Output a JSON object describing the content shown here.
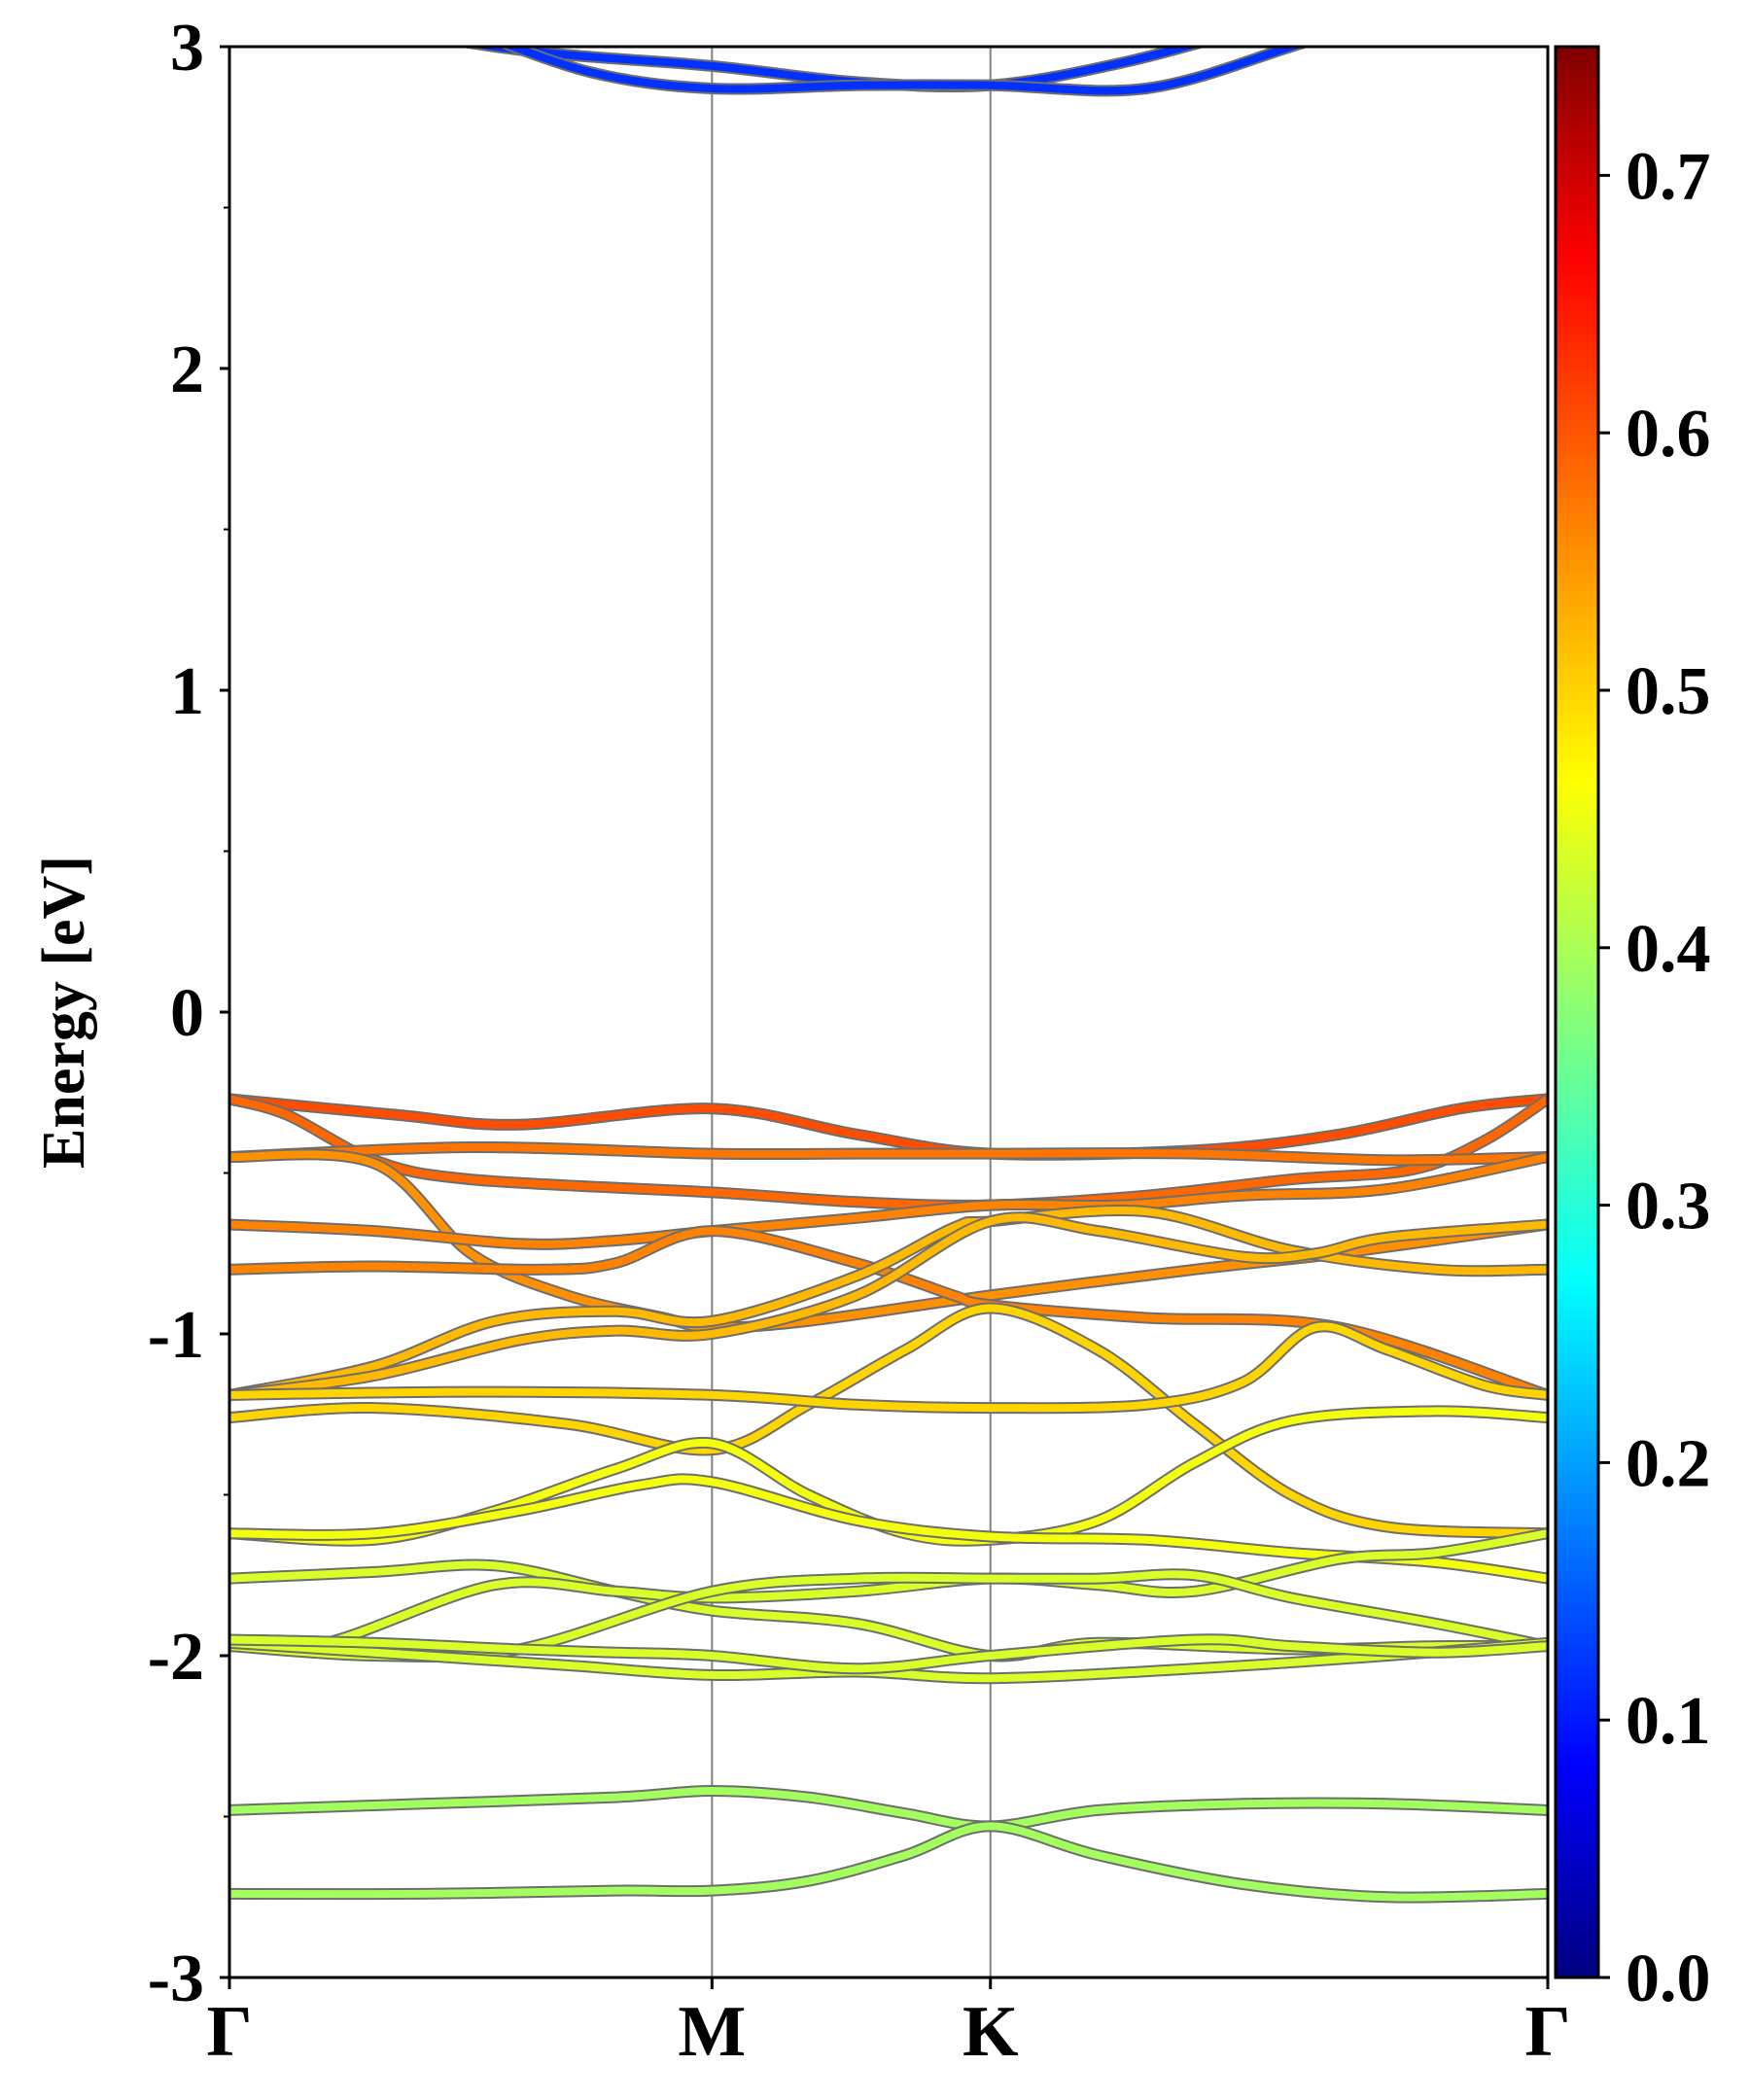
{
  "chart_data": {
    "type": "line",
    "title": "",
    "xlabel": "",
    "ylabel": "Energy [eV]",
    "ylim": [
      -3,
      3
    ],
    "y_ticks": [
      "-3",
      "-2",
      "-1",
      "0",
      "1",
      "2",
      "3"
    ],
    "x_ticks": [
      "Γ",
      "M",
      "K",
      "Γ"
    ],
    "x_tick_positions": [
      0,
      1.0,
      1.577,
      2.732
    ],
    "grid": "vertical lines at M and K",
    "colorbar": {
      "colormap": "jet",
      "range": [
        0.0,
        0.75
      ],
      "tick_labels": [
        "0.0",
        "0.1",
        "0.2",
        "0.3",
        "0.4",
        "0.5",
        "0.6",
        "0.7"
      ]
    },
    "series": [
      {
        "c": 0.13,
        "points": [
          [
            0,
            3.15
          ],
          [
            0.55,
            3.0
          ],
          [
            1.0,
            2.94
          ],
          [
            1.3,
            2.89
          ],
          [
            1.577,
            2.88
          ],
          [
            1.85,
            2.95
          ],
          [
            2.1,
            3.05
          ]
        ]
      },
      {
        "c": 0.13,
        "points": [
          [
            0.5,
            3.05
          ],
          [
            0.75,
            2.92
          ],
          [
            1.0,
            2.87
          ],
          [
            1.3,
            2.88
          ],
          [
            1.577,
            2.88
          ],
          [
            1.9,
            2.87
          ],
          [
            2.2,
            3.0
          ],
          [
            2.4,
            3.1
          ]
        ]
      },
      {
        "c": 0.6,
        "points": [
          [
            0,
            -0.27
          ],
          [
            0.35,
            -0.32
          ],
          [
            0.6,
            -0.35
          ],
          [
            1.0,
            -0.3
          ],
          [
            1.3,
            -0.38
          ],
          [
            1.577,
            -0.44
          ],
          [
            2.0,
            -0.43
          ],
          [
            2.3,
            -0.38
          ],
          [
            2.55,
            -0.3
          ],
          [
            2.732,
            -0.27
          ]
        ]
      },
      {
        "c": 0.58,
        "points": [
          [
            0,
            -0.27
          ],
          [
            0.12,
            -0.32
          ],
          [
            0.3,
            -0.46
          ],
          [
            0.5,
            -0.52
          ],
          [
            1.0,
            -0.56
          ],
          [
            1.3,
            -0.59
          ],
          [
            1.577,
            -0.6
          ],
          [
            1.9,
            -0.57
          ],
          [
            2.2,
            -0.52
          ],
          [
            2.45,
            -0.49
          ],
          [
            2.6,
            -0.4
          ],
          [
            2.732,
            -0.27
          ]
        ]
      },
      {
        "c": 0.57,
        "points": [
          [
            0,
            -0.45
          ],
          [
            0.5,
            -0.42
          ],
          [
            1.0,
            -0.44
          ],
          [
            1.3,
            -0.44
          ],
          [
            1.577,
            -0.44
          ],
          [
            2.0,
            -0.44
          ],
          [
            2.4,
            -0.46
          ],
          [
            2.732,
            -0.45
          ]
        ]
      },
      {
        "c": 0.55,
        "points": [
          [
            0,
            -0.45
          ],
          [
            0.3,
            -0.47
          ],
          [
            0.5,
            -0.75
          ],
          [
            0.7,
            -0.88
          ],
          [
            0.9,
            -0.95
          ],
          [
            1.0,
            -0.98
          ],
          [
            1.2,
            -0.96
          ],
          [
            1.577,
            -0.88
          ],
          [
            2.0,
            -0.8
          ],
          [
            2.3,
            -0.75
          ],
          [
            2.732,
            -0.66
          ]
        ]
      },
      {
        "c": 0.56,
        "points": [
          [
            0,
            -0.66
          ],
          [
            0.3,
            -0.68
          ],
          [
            0.6,
            -0.72
          ],
          [
            0.8,
            -0.71
          ],
          [
            1.0,
            -0.68
          ],
          [
            1.3,
            -0.64
          ],
          [
            1.577,
            -0.6
          ],
          [
            1.85,
            -0.6
          ],
          [
            2.1,
            -0.57
          ],
          [
            2.4,
            -0.55
          ],
          [
            2.732,
            -0.45
          ]
        ]
      },
      {
        "c": 0.56,
        "points": [
          [
            0,
            -0.8
          ],
          [
            0.3,
            -0.79
          ],
          [
            0.65,
            -0.8
          ],
          [
            0.8,
            -0.78
          ],
          [
            1.0,
            -0.68
          ],
          [
            1.3,
            -0.78
          ],
          [
            1.5,
            -0.88
          ],
          [
            1.577,
            -0.91
          ],
          [
            1.9,
            -0.95
          ],
          [
            2.3,
            -0.98
          ],
          [
            2.732,
            -1.19
          ]
        ]
      },
      {
        "c": 0.52,
        "points": [
          [
            0,
            -1.19
          ],
          [
            0.3,
            -1.1
          ],
          [
            0.55,
            -0.96
          ],
          [
            0.8,
            -0.93
          ],
          [
            1.0,
            -0.96
          ],
          [
            1.3,
            -0.82
          ],
          [
            1.5,
            -0.67
          ],
          [
            1.577,
            -0.65
          ],
          [
            1.9,
            -0.62
          ],
          [
            2.2,
            -0.74
          ],
          [
            2.5,
            -0.8
          ],
          [
            2.732,
            -0.8
          ]
        ]
      },
      {
        "c": 0.52,
        "points": [
          [
            0,
            -1.19
          ],
          [
            0.3,
            -1.13
          ],
          [
            0.6,
            -1.02
          ],
          [
            0.8,
            -0.99
          ],
          [
            1.0,
            -1.0
          ],
          [
            1.3,
            -0.88
          ],
          [
            1.577,
            -0.65
          ],
          [
            1.8,
            -0.68
          ],
          [
            2.1,
            -0.76
          ],
          [
            2.25,
            -0.75
          ],
          [
            2.4,
            -0.7
          ],
          [
            2.732,
            -0.66
          ]
        ]
      },
      {
        "c": 0.5,
        "points": [
          [
            0,
            -1.26
          ],
          [
            0.3,
            -1.23
          ],
          [
            0.7,
            -1.28
          ],
          [
            1.0,
            -1.36
          ],
          [
            1.2,
            -1.22
          ],
          [
            1.4,
            -1.05
          ],
          [
            1.577,
            -0.92
          ],
          [
            1.8,
            -1.05
          ],
          [
            2.0,
            -1.28
          ],
          [
            2.2,
            -1.5
          ],
          [
            2.4,
            -1.6
          ],
          [
            2.732,
            -1.62
          ]
        ]
      },
      {
        "c": 0.5,
        "points": [
          [
            0,
            -1.19
          ],
          [
            0.5,
            -1.18
          ],
          [
            1.0,
            -1.19
          ],
          [
            1.3,
            -1.22
          ],
          [
            1.577,
            -1.23
          ],
          [
            1.9,
            -1.22
          ],
          [
            2.1,
            -1.15
          ],
          [
            2.25,
            -0.98
          ],
          [
            2.4,
            -1.05
          ],
          [
            2.6,
            -1.16
          ],
          [
            2.732,
            -1.19
          ]
        ]
      },
      {
        "c": 0.46,
        "points": [
          [
            0,
            -1.62
          ],
          [
            0.3,
            -1.64
          ],
          [
            0.55,
            -1.55
          ],
          [
            0.8,
            -1.42
          ],
          [
            1.0,
            -1.34
          ],
          [
            1.2,
            -1.5
          ],
          [
            1.4,
            -1.62
          ],
          [
            1.577,
            -1.64
          ],
          [
            1.8,
            -1.58
          ],
          [
            2.0,
            -1.4
          ],
          [
            2.2,
            -1.27
          ],
          [
            2.5,
            -1.24
          ],
          [
            2.732,
            -1.26
          ]
        ]
      },
      {
        "c": 0.46,
        "points": [
          [
            0,
            -1.62
          ],
          [
            0.3,
            -1.62
          ],
          [
            0.6,
            -1.55
          ],
          [
            0.85,
            -1.47
          ],
          [
            1.0,
            -1.46
          ],
          [
            1.3,
            -1.58
          ],
          [
            1.577,
            -1.63
          ],
          [
            1.9,
            -1.64
          ],
          [
            2.2,
            -1.68
          ],
          [
            2.5,
            -1.71
          ],
          [
            2.732,
            -1.76
          ]
        ]
      },
      {
        "c": 0.44,
        "points": [
          [
            0,
            -1.76
          ],
          [
            0.3,
            -1.74
          ],
          [
            0.55,
            -1.72
          ],
          [
            0.8,
            -1.8
          ],
          [
            1.0,
            -1.86
          ],
          [
            1.3,
            -1.9
          ],
          [
            1.577,
            -2.0
          ],
          [
            1.8,
            -1.96
          ],
          [
            2.2,
            -1.98
          ],
          [
            2.5,
            -1.97
          ],
          [
            2.732,
            -1.97
          ]
        ]
      },
      {
        "c": 0.44,
        "points": [
          [
            0,
            -1.97
          ],
          [
            0.2,
            -1.96
          ],
          [
            0.55,
            -1.78
          ],
          [
            0.8,
            -1.8
          ],
          [
            1.0,
            -1.82
          ],
          [
            1.3,
            -1.8
          ],
          [
            1.577,
            -1.76
          ],
          [
            1.8,
            -1.78
          ],
          [
            2.0,
            -1.8
          ],
          [
            2.3,
            -1.7
          ],
          [
            2.5,
            -1.68
          ],
          [
            2.732,
            -1.62
          ]
        ]
      },
      {
        "c": 0.44,
        "points": [
          [
            0,
            -1.97
          ],
          [
            0.3,
            -2.0
          ],
          [
            0.6,
            -1.98
          ],
          [
            1.0,
            -1.8
          ],
          [
            1.3,
            -1.76
          ],
          [
            1.577,
            -1.76
          ],
          [
            1.8,
            -1.76
          ],
          [
            2.0,
            -1.75
          ],
          [
            2.2,
            -1.82
          ],
          [
            2.5,
            -1.9
          ],
          [
            2.732,
            -1.97
          ]
        ]
      },
      {
        "c": 0.44,
        "points": [
          [
            0,
            -1.96
          ],
          [
            0.3,
            -1.99
          ],
          [
            0.7,
            -2.03
          ],
          [
            1.0,
            -2.06
          ],
          [
            1.3,
            -2.05
          ],
          [
            1.577,
            -2.07
          ],
          [
            2.0,
            -2.04
          ],
          [
            2.4,
            -2.0
          ],
          [
            2.732,
            -1.96
          ]
        ]
      },
      {
        "c": 0.44,
        "points": [
          [
            0,
            -1.95
          ],
          [
            0.3,
            -1.96
          ],
          [
            0.6,
            -1.98
          ],
          [
            0.8,
            -1.99
          ],
          [
            1.0,
            -2.0
          ],
          [
            1.3,
            -2.04
          ],
          [
            1.577,
            -2.0
          ],
          [
            2.0,
            -1.95
          ],
          [
            2.2,
            -1.97
          ],
          [
            2.5,
            -1.99
          ],
          [
            2.732,
            -1.97
          ]
        ]
      },
      {
        "c": 0.4,
        "points": [
          [
            0,
            -2.48
          ],
          [
            0.4,
            -2.46
          ],
          [
            0.8,
            -2.44
          ],
          [
            1.0,
            -2.42
          ],
          [
            1.2,
            -2.44
          ],
          [
            1.4,
            -2.49
          ],
          [
            1.577,
            -2.53
          ],
          [
            1.8,
            -2.48
          ],
          [
            2.1,
            -2.46
          ],
          [
            2.4,
            -2.46
          ],
          [
            2.732,
            -2.48
          ]
        ]
      },
      {
        "c": 0.4,
        "points": [
          [
            0,
            -2.74
          ],
          [
            0.4,
            -2.74
          ],
          [
            0.8,
            -2.73
          ],
          [
            1.0,
            -2.73
          ],
          [
            1.2,
            -2.7
          ],
          [
            1.4,
            -2.62
          ],
          [
            1.577,
            -2.53
          ],
          [
            1.8,
            -2.62
          ],
          [
            2.1,
            -2.71
          ],
          [
            2.4,
            -2.75
          ],
          [
            2.732,
            -2.74
          ]
        ]
      }
    ]
  }
}
